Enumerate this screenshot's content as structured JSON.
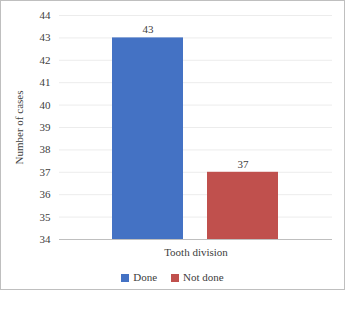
{
  "chart_data": {
    "type": "bar",
    "categories": [
      "Tooth division"
    ],
    "series": [
      {
        "name": "Done",
        "color": "#4472c4",
        "values": [
          43
        ]
      },
      {
        "name": "Not done",
        "color": "#c0504d",
        "values": [
          37
        ]
      }
    ],
    "ylabel": "Number of cases",
    "ylim": [
      34,
      44
    ],
    "yticks": [
      34,
      35,
      36,
      37,
      38,
      39,
      40,
      41,
      42,
      43,
      44
    ],
    "grid": true,
    "data_labels": true,
    "legend": "bottom"
  }
}
